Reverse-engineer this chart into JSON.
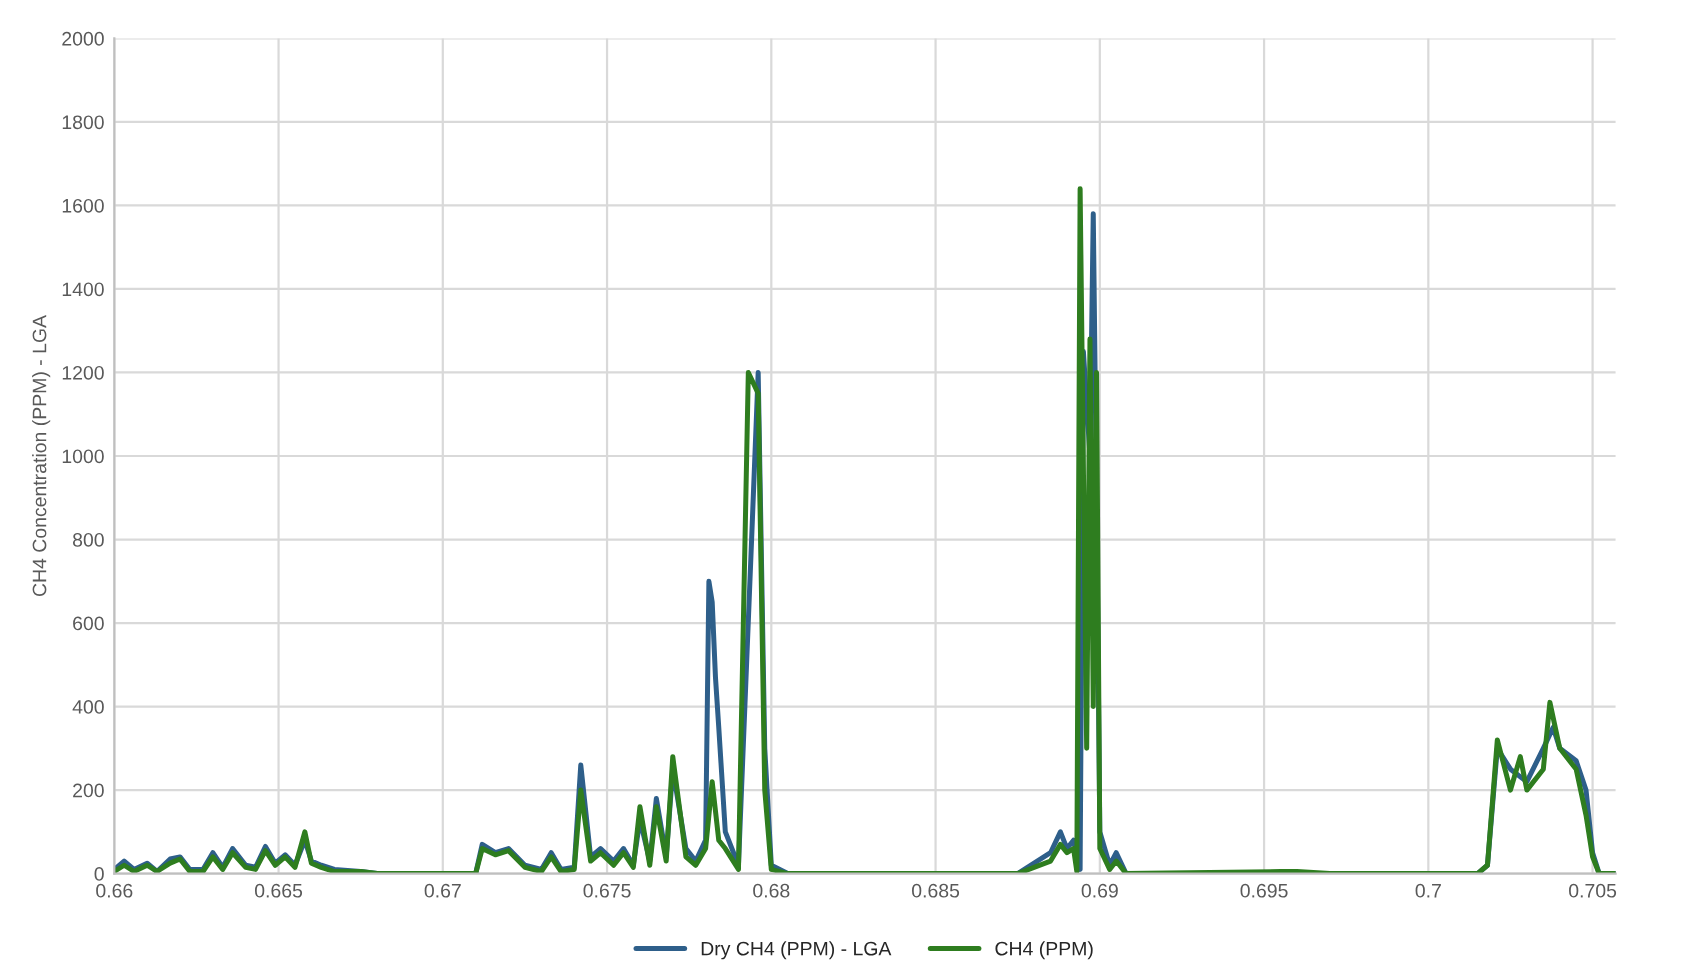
{
  "chart_data": {
    "type": "line",
    "ylabel": "CH4 Concentration (PPM) - LGA",
    "xlim": [
      0.66,
      0.7057
    ],
    "xticks": [
      {
        "value": 0.66,
        "label": "0.66"
      },
      {
        "value": 0.665,
        "label": "0.665"
      },
      {
        "value": 0.67,
        "label": "0.67"
      },
      {
        "value": 0.675,
        "label": "0.675"
      },
      {
        "value": 0.68,
        "label": "0.68"
      },
      {
        "value": 0.685,
        "label": "0.685"
      },
      {
        "value": 0.69,
        "label": "0.69"
      },
      {
        "value": 0.695,
        "label": "0.695"
      },
      {
        "value": 0.7,
        "label": "0.7"
      },
      {
        "value": 0.705,
        "label": "0.705"
      }
    ],
    "ylim": [
      0,
      2000
    ],
    "yticks": [
      0,
      200,
      400,
      600,
      800,
      1000,
      1200,
      1400,
      1600,
      1800,
      2000
    ],
    "grid": true,
    "legend": "bottom",
    "marker": "none",
    "line_style": "solid",
    "series": [
      {
        "name": "Dry CH4 (PPM) - LGA",
        "color": "#2e5f8a",
        "x": [
          0.66,
          0.6603,
          0.6606,
          0.661,
          0.6613,
          0.6617,
          0.662,
          0.6623,
          0.6627,
          0.663,
          0.6633,
          0.6636,
          0.664,
          0.6643,
          0.6646,
          0.6649,
          0.6652,
          0.6655,
          0.6658,
          0.666,
          0.6663,
          0.6667,
          0.6675,
          0.668,
          0.671,
          0.6712,
          0.6716,
          0.672,
          0.6725,
          0.673,
          0.6733,
          0.6736,
          0.674,
          0.6742,
          0.6745,
          0.6748,
          0.6752,
          0.6755,
          0.6758,
          0.676,
          0.6763,
          0.6765,
          0.6768,
          0.677,
          0.6774,
          0.6777,
          0.678,
          0.6781,
          0.6782,
          0.6783,
          0.6784,
          0.6786,
          0.679,
          0.6794,
          0.6796,
          0.6798,
          0.68,
          0.6805,
          0.6875,
          0.6885,
          0.6888,
          0.689,
          0.6892,
          0.6894,
          0.6895,
          0.6897,
          0.6898,
          0.6899,
          0.69,
          0.6903,
          0.6905,
          0.6908,
          0.7015,
          0.7018,
          0.7021,
          0.7025,
          0.703,
          0.7035,
          0.7038,
          0.704,
          0.7045,
          0.7048,
          0.705,
          0.7052,
          0.7057
        ],
        "values": [
          10,
          30,
          10,
          25,
          5,
          35,
          40,
          10,
          10,
          50,
          15,
          60,
          20,
          15,
          65,
          25,
          45,
          20,
          80,
          30,
          20,
          10,
          5,
          0,
          0,
          70,
          50,
          60,
          20,
          10,
          50,
          10,
          15,
          260,
          40,
          60,
          30,
          60,
          20,
          130,
          30,
          180,
          40,
          250,
          60,
          30,
          80,
          700,
          650,
          470,
          350,
          100,
          20,
          800,
          1200,
          300,
          20,
          0,
          0,
          50,
          100,
          60,
          80,
          10,
          1250,
          1000,
          1580,
          900,
          100,
          20,
          50,
          0,
          0,
          20,
          300,
          250,
          220,
          300,
          350,
          300,
          270,
          200,
          50,
          0,
          0
        ]
      },
      {
        "name": "CH4 (PPM)",
        "color": "#2e7d1f",
        "x": [
          0.66,
          0.6603,
          0.6606,
          0.661,
          0.6613,
          0.6617,
          0.662,
          0.6623,
          0.6627,
          0.663,
          0.6633,
          0.6636,
          0.664,
          0.6643,
          0.6646,
          0.6649,
          0.6652,
          0.6655,
          0.6658,
          0.666,
          0.6663,
          0.6667,
          0.6675,
          0.668,
          0.671,
          0.6712,
          0.6716,
          0.672,
          0.6725,
          0.673,
          0.6733,
          0.6736,
          0.674,
          0.6742,
          0.6745,
          0.6748,
          0.6752,
          0.6755,
          0.6758,
          0.676,
          0.6763,
          0.6765,
          0.6768,
          0.677,
          0.6774,
          0.6777,
          0.678,
          0.6782,
          0.6784,
          0.6786,
          0.679,
          0.6793,
          0.6796,
          0.6798,
          0.68,
          0.6805,
          0.6875,
          0.6885,
          0.6888,
          0.689,
          0.6892,
          0.6893,
          0.6894,
          0.6896,
          0.6897,
          0.6898,
          0.6899,
          0.69,
          0.6903,
          0.6905,
          0.6908,
          0.6955,
          0.696,
          0.697,
          0.7015,
          0.7018,
          0.7021,
          0.7025,
          0.7028,
          0.703,
          0.7035,
          0.7037,
          0.704,
          0.7045,
          0.7048,
          0.705,
          0.7052,
          0.7057
        ],
        "values": [
          5,
          20,
          5,
          20,
          5,
          25,
          35,
          5,
          5,
          40,
          10,
          50,
          15,
          10,
          55,
          20,
          40,
          15,
          100,
          25,
          15,
          5,
          5,
          0,
          0,
          60,
          45,
          55,
          15,
          5,
          40,
          5,
          10,
          200,
          30,
          50,
          20,
          50,
          15,
          160,
          20,
          160,
          30,
          280,
          40,
          20,
          60,
          220,
          80,
          60,
          10,
          1200,
          1150,
          200,
          10,
          0,
          0,
          30,
          70,
          50,
          60,
          5,
          1640,
          300,
          1280,
          400,
          1200,
          60,
          10,
          30,
          0,
          5,
          5,
          0,
          0,
          20,
          320,
          200,
          280,
          200,
          250,
          410,
          300,
          250,
          140,
          40,
          0,
          0
        ]
      }
    ]
  }
}
